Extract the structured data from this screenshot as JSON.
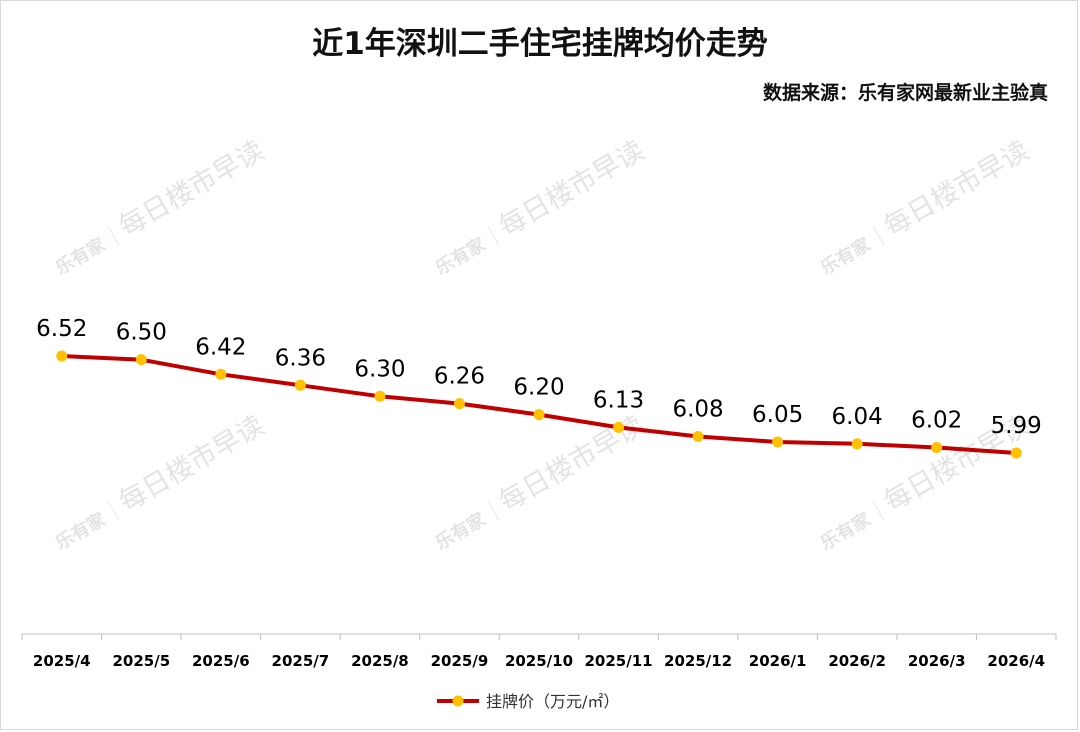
{
  "header": {
    "title": "近1年深圳二手住宅挂牌均价走势",
    "source": "数据来源：乐有家网最新业主验真"
  },
  "watermark": {
    "brand": "乐有家",
    "text": "每日楼市早读"
  },
  "colors": {
    "line": "#c00000",
    "marker": "#ffc000",
    "axis": "#bfbfbf",
    "text": "#000000"
  },
  "chart_data": {
    "type": "line",
    "title": "近1年深圳二手住宅挂牌均价走势",
    "categories": [
      "2025/4",
      "2025/5",
      "2025/6",
      "2025/7",
      "2025/8",
      "2025/9",
      "2025/10",
      "2025/11",
      "2025/12",
      "2026/1",
      "2026/2",
      "2026/3",
      "2026/4"
    ],
    "series": [
      {
        "name": "挂牌价（万元/㎡）",
        "values": [
          6.52,
          6.5,
          6.42,
          6.36,
          6.3,
          6.26,
          6.2,
          6.13,
          6.08,
          6.05,
          6.04,
          6.02,
          5.99
        ],
        "labels": [
          "6.52",
          "6.50",
          "6.42",
          "6.36",
          "6.30",
          "6.26",
          "6.20",
          "6.13",
          "6.08",
          "6.05",
          "6.04",
          "6.02",
          "5.99"
        ]
      }
    ],
    "legend_position": "bottom",
    "grid": false
  }
}
